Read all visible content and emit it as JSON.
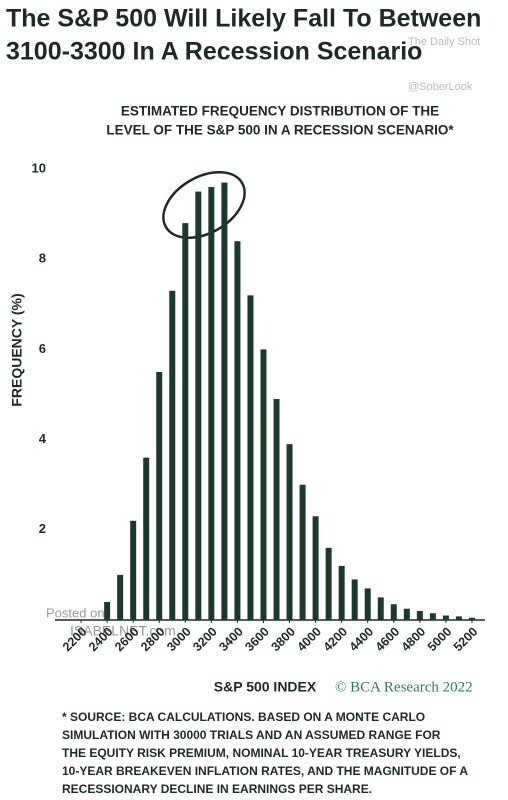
{
  "chart_data": {
    "type": "bar",
    "title_lines": [
      "The S&P 500 Will Likely Fall To Between",
      "3100-3300 In A Recession Scenario"
    ],
    "subtitle_lines": [
      "ESTIMATED FREQUENCY DISTRIBUTION OF THE",
      "LEVEL OF THE S&P 500 IN A RECESSION SCENARIO*"
    ],
    "x_label": "S&P 500 INDEX",
    "y_label": "FREQUENCY (%)",
    "credit": "© BCA Research 2022",
    "watermarks": [
      "The Daily Shot",
      "@SoberLook",
      "Posted on",
      "ISABELNET.com"
    ],
    "footnote_lines": [
      "* SOURCE: BCA CALCULATIONS. BASED ON A MONTE CARLO",
      "SIMULATION WITH 30000 TRIALS AND AN ASSUMED RANGE FOR",
      "THE EQUITY RISK PREMIUM, NOMINAL 10-YEAR TREASURY YIELDS,",
      "10-YEAR BREAKEVEN INFLATION RATES, AND THE MAGNITUDE OF A",
      "RECESSIONARY DECLINE IN EARNINGS PER SHARE."
    ],
    "x": [
      2400,
      2500,
      2600,
      2700,
      2800,
      2900,
      3000,
      3100,
      3200,
      3300,
      3400,
      3500,
      3600,
      3700,
      3800,
      3900,
      4000,
      4100,
      4200,
      4300,
      4400,
      4500,
      4600,
      4700,
      4800,
      4900,
      5000,
      5100,
      5200
    ],
    "values": [
      0.4,
      1.0,
      2.2,
      3.6,
      5.5,
      7.3,
      8.8,
      9.5,
      9.6,
      9.7,
      8.4,
      7.2,
      6.0,
      4.9,
      3.9,
      3.0,
      2.3,
      1.6,
      1.2,
      0.9,
      0.7,
      0.5,
      0.35,
      0.25,
      0.2,
      0.15,
      0.1,
      0.08,
      0.05
    ],
    "color": "#1c3a2c",
    "xlim": [
      2000,
      5300
    ],
    "xticks": [
      2200,
      2400,
      2600,
      2800,
      3000,
      3200,
      3400,
      3600,
      3800,
      4000,
      4200,
      4400,
      4600,
      4800,
      5000,
      5200
    ],
    "ylim": [
      0,
      10.4
    ],
    "yticks": [
      2,
      4,
      6,
      8,
      10
    ]
  }
}
